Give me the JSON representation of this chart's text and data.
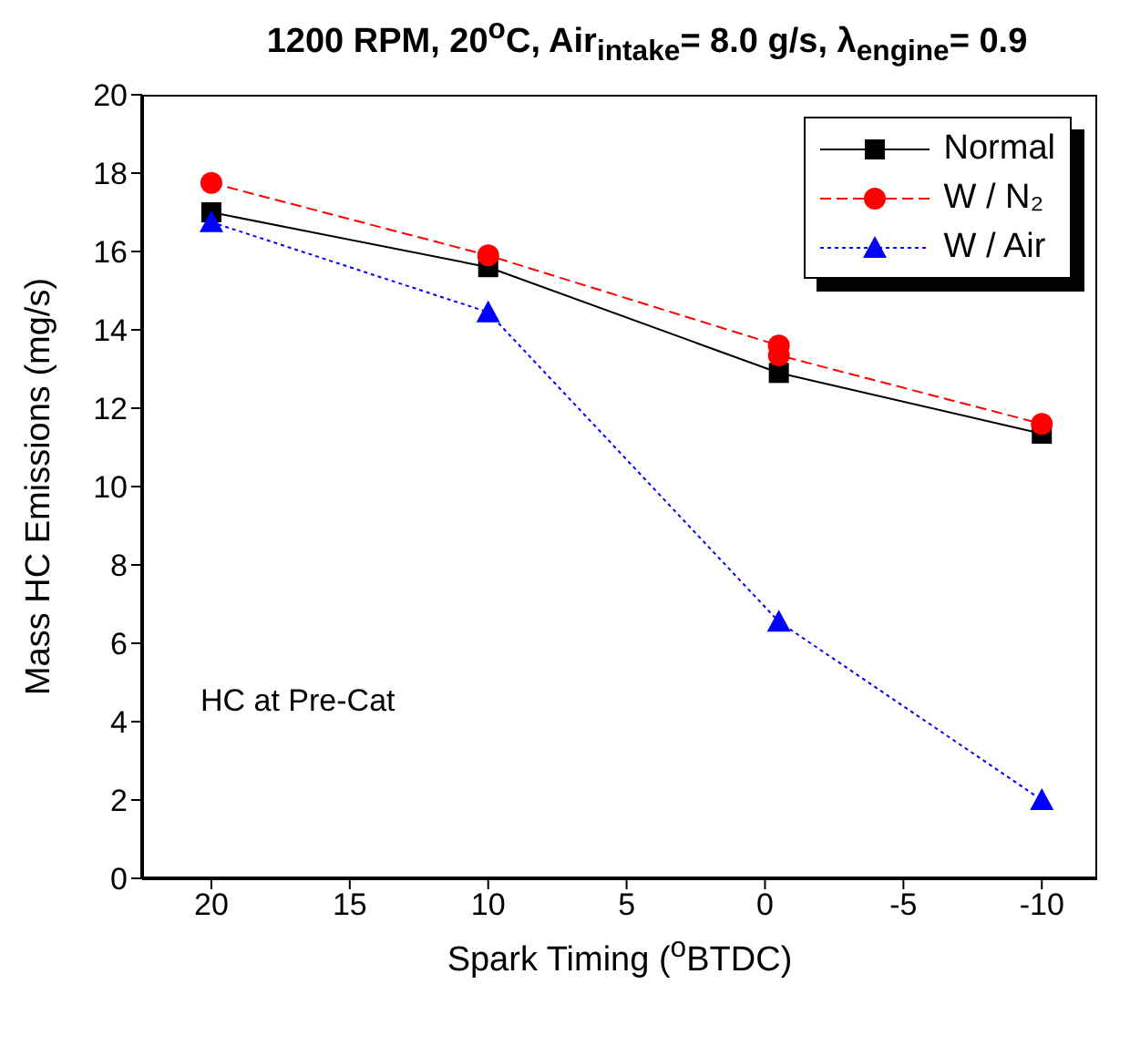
{
  "chart_data": {
    "type": "line",
    "title": "1200 RPM, 20$^{o}$C, Air$_{intake}$= 8.0 g/s, λ$_{engine}$= 0.9",
    "xlabel": "Spark Timing ($^{o}$BTDC)",
    "ylabel": "Mass HC Emissions (mg/s)",
    "annotations": [
      "HC at Pre-Cat"
    ],
    "xlim": [
      22.5,
      -12
    ],
    "xticks": [
      20,
      15,
      10,
      5,
      0,
      -5,
      -10
    ],
    "ylim": [
      0,
      20
    ],
    "yticks": [
      0,
      2,
      4,
      6,
      8,
      10,
      12,
      14,
      16,
      18,
      20
    ],
    "grid": false,
    "legend": "top right",
    "series": [
      {
        "name": "Normal",
        "color": "#000000",
        "marker": "square",
        "line_style": "solid",
        "x": [
          20,
          10,
          -0.5,
          -10
        ],
        "values": [
          17.0,
          15.6,
          12.9,
          11.35
        ]
      },
      {
        "name": "W / N₂",
        "color": "#ff0000",
        "marker": "circle",
        "line_style": "dashed",
        "x": [
          20,
          10,
          -0.5,
          -0.5,
          -10
        ],
        "values": [
          17.75,
          15.9,
          13.6,
          13.35,
          11.6
        ]
      },
      {
        "name": "W / Air",
        "color": "#0000ff",
        "marker": "triangle",
        "line_style": "dotted",
        "x": [
          20,
          10,
          -0.5,
          -10
        ],
        "values": [
          16.75,
          14.45,
          6.55,
          2.0
        ]
      }
    ]
  }
}
